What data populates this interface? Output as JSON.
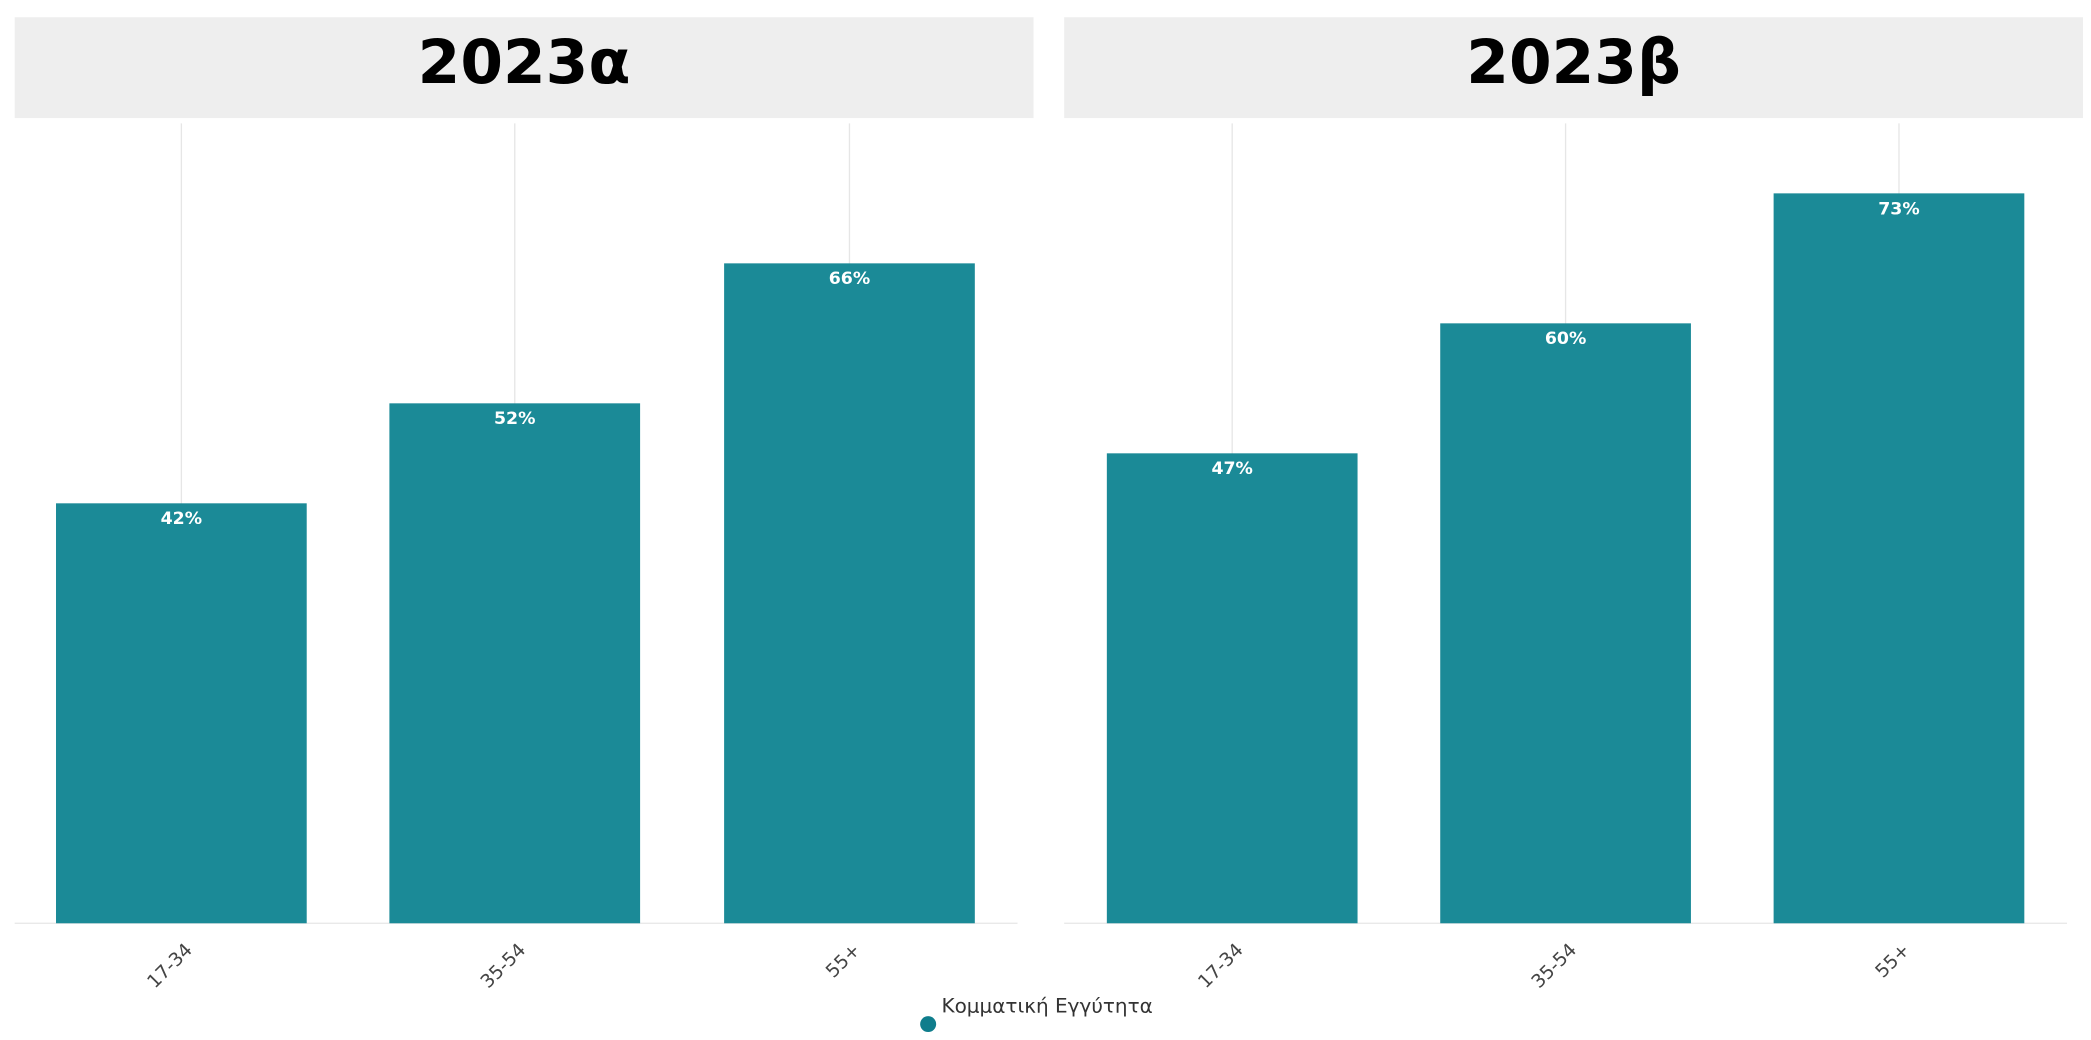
{
  "chart_data": [
    {
      "type": "bar",
      "title": "2023α",
      "categories": [
        "17-34",
        "35-54",
        "55+"
      ],
      "values": [
        42,
        52,
        66
      ],
      "value_labels": [
        "42%",
        "52%",
        "66%"
      ],
      "color": "#1b8a97",
      "ylim": [
        0,
        80
      ],
      "grid": true
    },
    {
      "type": "bar",
      "title": "2023β",
      "categories": [
        "17-34",
        "35-54",
        "55+"
      ],
      "values": [
        47,
        60,
        73
      ],
      "value_labels": [
        "47%",
        "60%",
        "73%"
      ],
      "color": "#1b8a97",
      "ylim": [
        0,
        80
      ],
      "grid": true
    }
  ],
  "legend": {
    "label": "Κομματική Εγγύτητα",
    "color": "#0f7d8c"
  }
}
